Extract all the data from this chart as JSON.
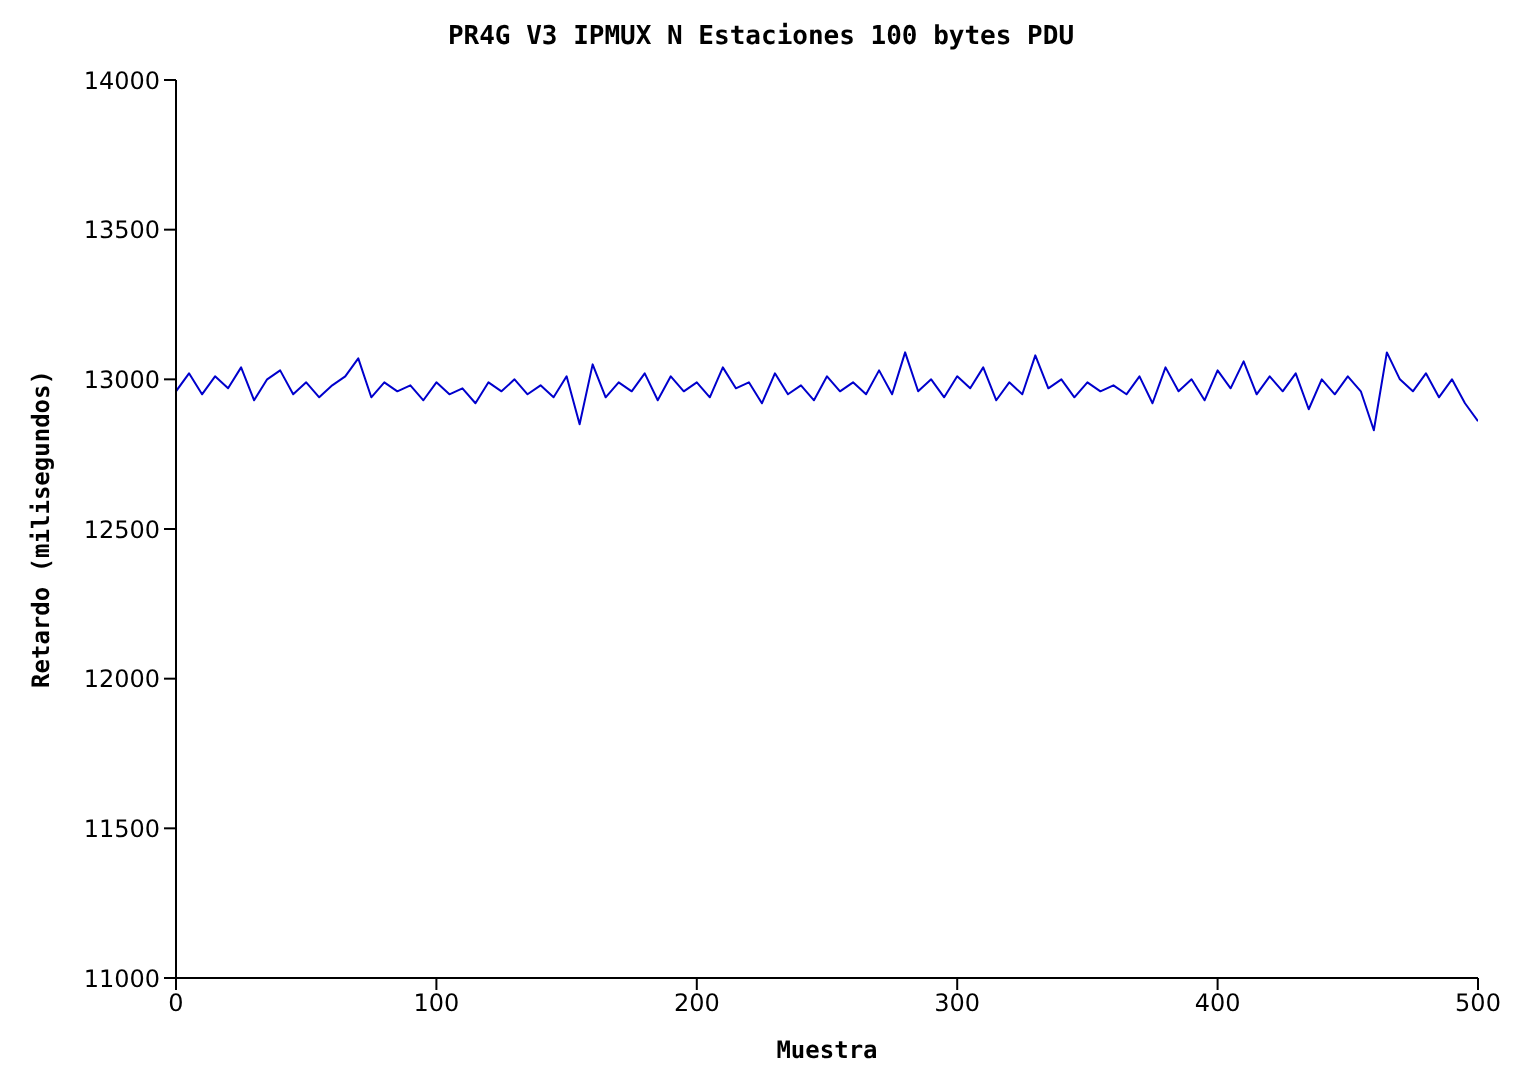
{
  "chart_data": {
    "type": "line",
    "title": "PR4G V3 IPMUX N Estaciones 100 bytes PDU",
    "xlabel": "Muestra",
    "ylabel": "Retardo (milisegundos)",
    "x": [
      0,
      5,
      10,
      15,
      20,
      25,
      30,
      35,
      40,
      45,
      50,
      55,
      60,
      65,
      70,
      75,
      80,
      85,
      90,
      95,
      100,
      105,
      110,
      115,
      120,
      125,
      130,
      135,
      140,
      145,
      150,
      155,
      160,
      165,
      170,
      175,
      180,
      185,
      190,
      195,
      200,
      205,
      210,
      215,
      220,
      225,
      230,
      235,
      240,
      245,
      250,
      255,
      260,
      265,
      270,
      275,
      280,
      285,
      290,
      295,
      300,
      305,
      310,
      315,
      320,
      325,
      330,
      335,
      340,
      345,
      350,
      355,
      360,
      365,
      370,
      375,
      380,
      385,
      390,
      395,
      400,
      405,
      410,
      415,
      420,
      425,
      430,
      435,
      440,
      445,
      450,
      455,
      460,
      465,
      470,
      475,
      480,
      485,
      490,
      495,
      500
    ],
    "series": [
      {
        "color": "#0000cc",
        "values": [
          12960,
          13020,
          12950,
          13010,
          12970,
          13040,
          12930,
          13000,
          13030,
          12950,
          12990,
          12940,
          12980,
          13010,
          13070,
          12940,
          12990,
          12960,
          12980,
          12930,
          12990,
          12950,
          12970,
          12920,
          12990,
          12960,
          13000,
          12950,
          12980,
          12940,
          13010,
          12850,
          13050,
          12940,
          12990,
          12960,
          13020,
          12930,
          13010,
          12960,
          12990,
          12940,
          13040,
          12970,
          12990,
          12920,
          13020,
          12950,
          12980,
          12930,
          13010,
          12960,
          12990,
          12950,
          13030,
          12950,
          13090,
          12960,
          13000,
          12940,
          13010,
          12970,
          13040,
          12930,
          12990,
          12950,
          13080,
          12970,
          13000,
          12940,
          12990,
          12960,
          12980,
          12950,
          13010,
          12920,
          13040,
          12960,
          13000,
          12930,
          13030,
          12970,
          13060,
          12950,
          13010,
          12960,
          13020,
          12900,
          13000,
          12950,
          13010,
          12960,
          12830,
          13090,
          13000,
          12960,
          13020,
          12940,
          13000,
          12920,
          12860
        ]
      }
    ],
    "xlim": [
      0,
      500
    ],
    "xticks": [
      0,
      100,
      200,
      300,
      400,
      500
    ],
    "ylim": [
      11000,
      14000
    ],
    "yticks": [
      11000,
      11500,
      12000,
      12500,
      13000,
      13500,
      14000
    ],
    "grid": false,
    "legend": false,
    "marker": "none",
    "line_style": "solid"
  }
}
